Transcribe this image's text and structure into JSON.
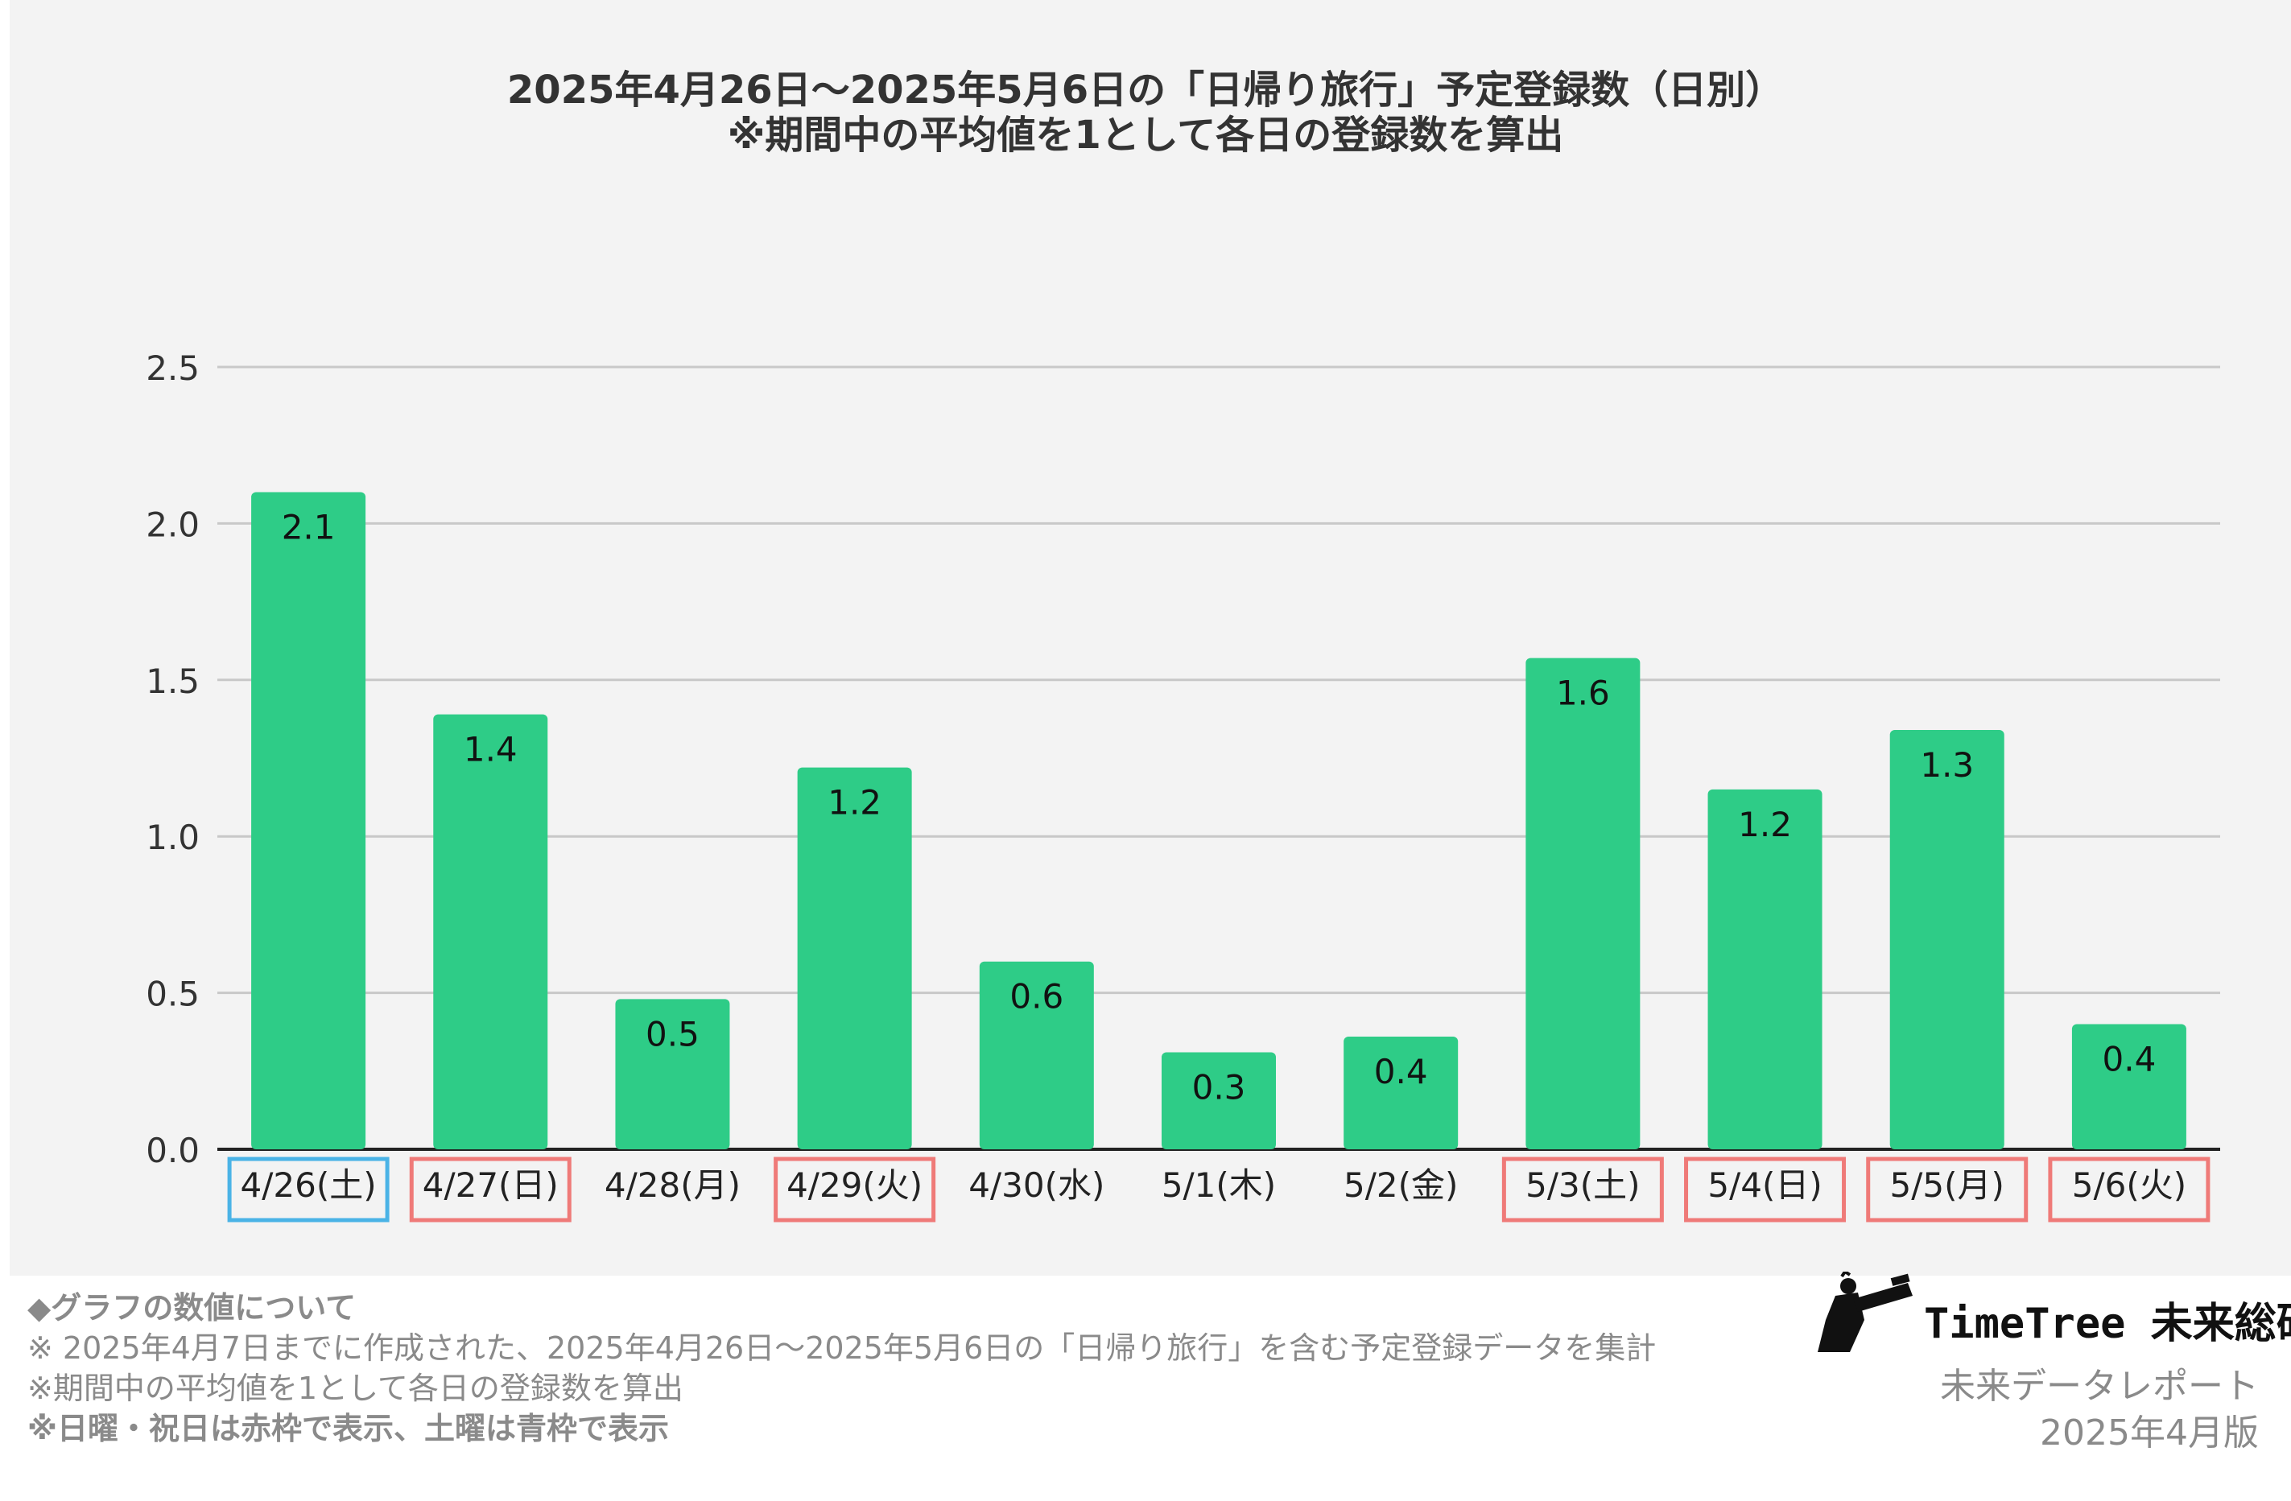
{
  "header": {
    "title_line1": "2025年4月26日〜2025年5月6日の「日帰り旅行」予定登録数（日別）",
    "title_line2": "※期間中の平均値を1として各日の登録数を算出"
  },
  "colors": {
    "bar": "#2ecc87",
    "grid": "#c8c8c8",
    "axis": "#222222",
    "saturday_frame": "#4ab3e6",
    "holiday_frame": "#ef7a78"
  },
  "chart_data": {
    "type": "bar",
    "title": "2025年4月26日〜2025年5月6日の「日帰り旅行」予定登録数（日別） ※期間中の平均値を1として各日の登録数を算出",
    "categories": [
      "4/26(土)",
      "4/27(日)",
      "4/28(月)",
      "4/29(火)",
      "4/30(水)",
      "5/1(木)",
      "5/2(金)",
      "5/3(土)",
      "5/4(日)",
      "5/5(月)",
      "5/6(火)"
    ],
    "values": [
      2.1,
      1.39,
      0.48,
      1.22,
      0.6,
      0.31,
      0.36,
      1.57,
      1.15,
      1.34,
      0.4
    ],
    "data_labels": [
      "2.1",
      "1.4",
      "0.5",
      "1.2",
      "0.6",
      "0.3",
      "0.4",
      "1.6",
      "1.2",
      "1.3",
      "0.4"
    ],
    "frames": [
      "blue",
      "red",
      "none",
      "red",
      "none",
      "none",
      "none",
      "red",
      "red",
      "red",
      "red"
    ],
    "ylim": [
      0,
      2.5
    ],
    "yticks": [
      0,
      0.5,
      1,
      1.5,
      2,
      2.5
    ],
    "ytick_labels": [
      "0.0",
      "0.5",
      "1.0",
      "1.5",
      "2.0",
      "2.5"
    ],
    "grid": true,
    "legend": "none"
  },
  "notes": [
    "◆グラフの数値について",
    "※ 2025年4月7日までに作成された、2025年4月26日〜2025年5月6日の「日帰り旅行」を含む予定登録データを集計",
    "※期間中の平均値を1として各日の登録数を算出",
    "※日曜・祝日は赤枠で表示、土曜は青枠で表示"
  ],
  "brand": {
    "name": "TimeTree 未来総研",
    "sub1": "未来データレポート",
    "sub2": "2025年4月版",
    "logo_icon": "telescope-figure-icon"
  }
}
